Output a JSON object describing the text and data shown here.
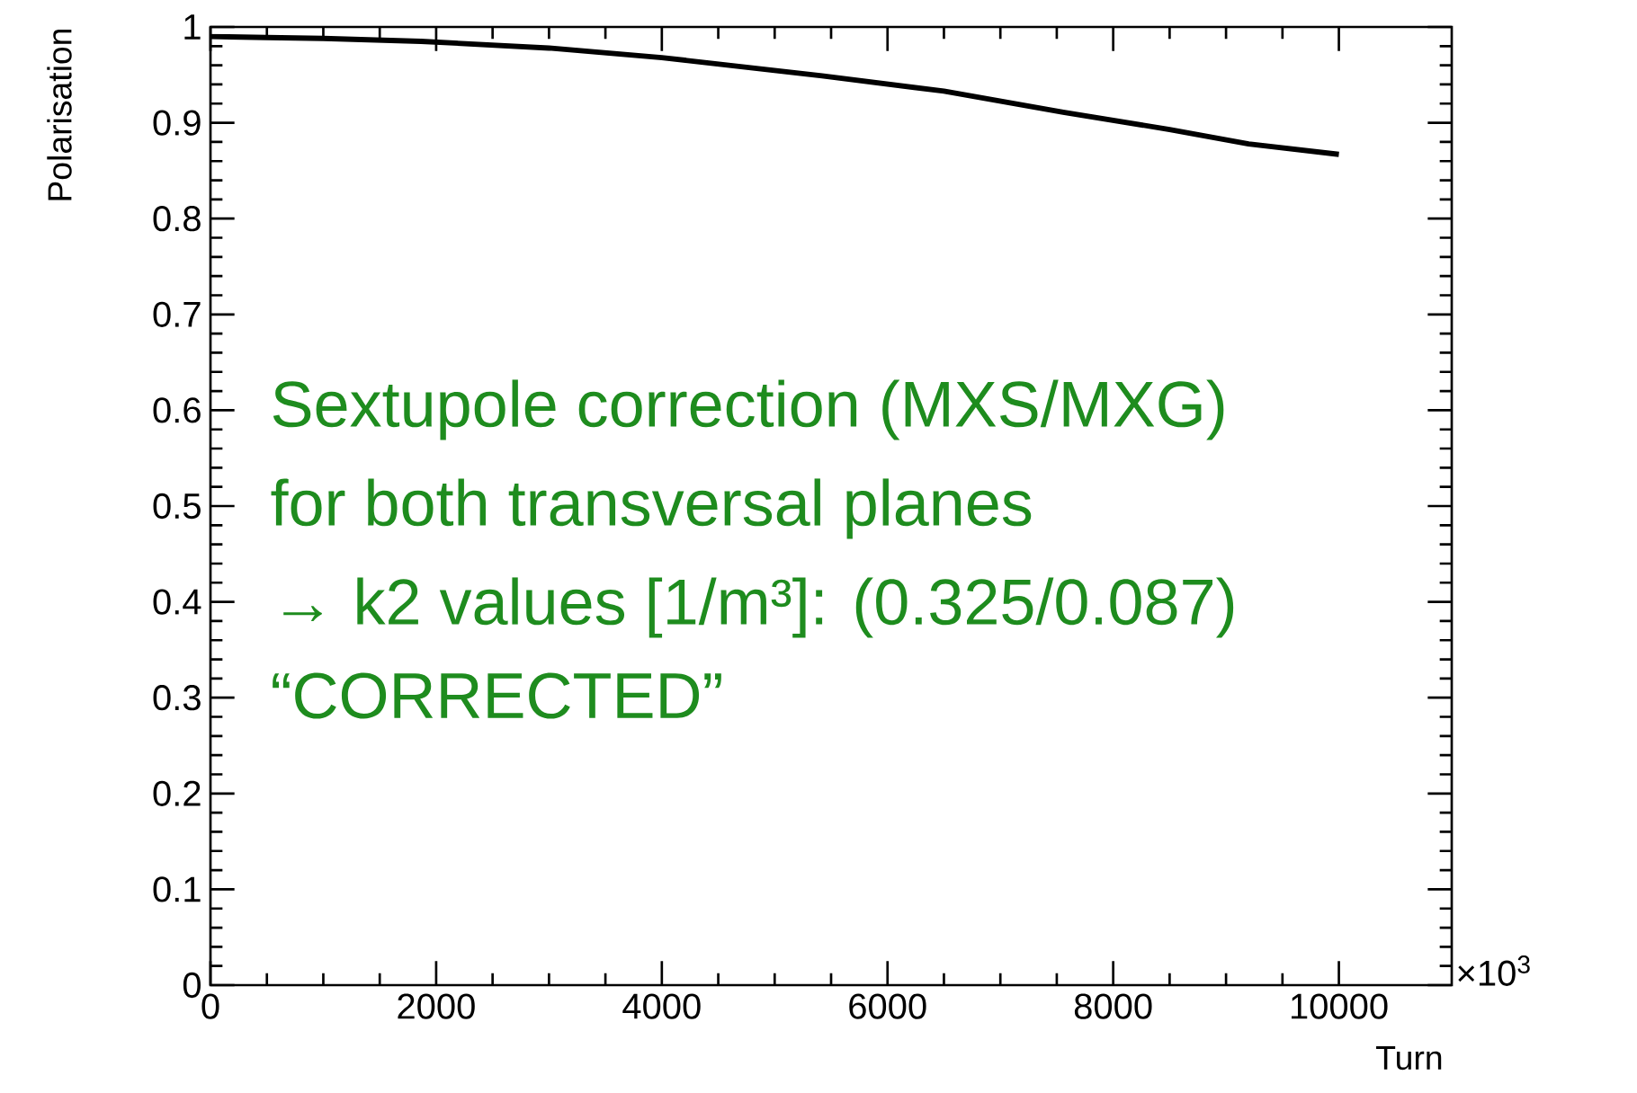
{
  "chart_data": {
    "type": "line",
    "xlabel": "Turn",
    "ylabel": "Polarisation",
    "x": [
      0,
      500,
      1000,
      1865,
      3000,
      4000,
      5420,
      6500,
      7557,
      8500,
      9200,
      10000
    ],
    "series": [
      {
        "color": "#000000",
        "values": [
          0.99,
          0.989,
          0.988,
          0.985,
          0.978,
          0.968,
          0.949,
          0.933,
          0.911,
          0.893,
          0.878,
          0.867
        ]
      }
    ],
    "xlim": [
      0,
      11000
    ],
    "xticks": [
      0,
      2000,
      4000,
      6000,
      8000,
      10000
    ],
    "ylim": [
      0,
      1
    ],
    "yticks": [
      0,
      0.1,
      0.2,
      0.3,
      0.4,
      0.5,
      0.6,
      0.7,
      0.8,
      0.9,
      1
    ],
    "marker": "none",
    "line_style": "solid",
    "grid": false,
    "annotations": [
      "Sextupole correction (MXS/MXG)",
      "for both transversal planes",
      "→    k2 values [1/m³]: (0.325/0.087)",
      "“CORRECTED”",
      "×10$^{3}$"
    ]
  }
}
